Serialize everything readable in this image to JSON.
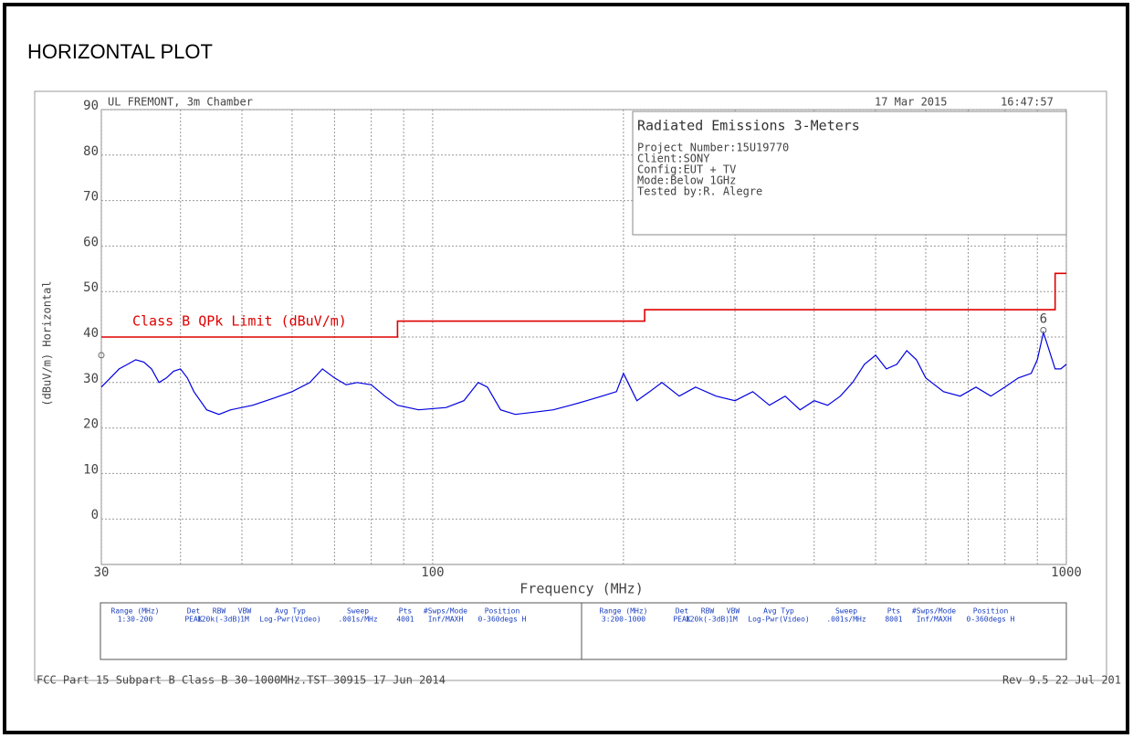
{
  "header": {
    "title": "HORIZONTAL PLOT"
  },
  "chart_data": {
    "type": "line",
    "site": "UL FREMONT, 3m Chamber",
    "date": "17 Mar 2015",
    "time": "16:47:57",
    "info": {
      "title": "Radiated Emissions 3-Meters",
      "lines": [
        "Project Number:15U19770",
        "Client:SONY",
        "Config:EUT + TV",
        "Mode:Below 1GHz",
        "Tested by:R. Alegre"
      ]
    },
    "xlabel": "Frequency (MHz)",
    "ylabel": "(dBuV/m) Horizontal",
    "xscale": "log",
    "xlim": [
      30,
      1000
    ],
    "xticks": [
      30,
      100,
      1000
    ],
    "xminor": [
      40,
      50,
      60,
      70,
      80,
      90,
      200,
      300,
      400,
      500,
      600,
      700,
      800,
      900
    ],
    "ylim": [
      -10,
      90
    ],
    "yticks": [
      0,
      10,
      20,
      30,
      40,
      50,
      60,
      70,
      80,
      90
    ],
    "grid": true,
    "series": [
      {
        "name": "Class B QPk Limit (dBuV/m)",
        "color": "#e00000",
        "step": true,
        "x": [
          30,
          88,
          88,
          216,
          216,
          960,
          960,
          1000
        ],
        "values": [
          40,
          40,
          43.5,
          43.5,
          46,
          46,
          54,
          54
        ]
      },
      {
        "color": "#0000e0",
        "x": [
          30,
          31,
          32,
          33,
          34,
          35,
          36,
          37,
          38,
          39,
          40,
          41,
          42,
          44,
          46,
          48,
          52,
          56,
          60,
          64,
          67,
          70,
          73,
          76,
          80,
          84,
          88,
          95,
          105,
          112,
          118,
          122,
          128,
          135,
          145,
          155,
          165,
          175,
          185,
          195,
          200,
          210,
          220,
          230,
          245,
          260,
          280,
          300,
          320,
          340,
          360,
          380,
          400,
          420,
          440,
          460,
          480,
          500,
          520,
          540,
          560,
          580,
          600,
          640,
          680,
          720,
          760,
          800,
          840,
          880,
          900,
          920,
          940,
          960,
          980,
          1000
        ],
        "values": [
          29,
          31,
          33,
          34,
          35,
          34.5,
          33,
          30,
          31,
          32.5,
          33,
          31,
          28,
          24,
          23,
          24,
          25,
          26.5,
          28,
          30,
          33,
          31,
          29.5,
          30,
          29.5,
          27,
          25,
          24,
          24.5,
          26,
          30,
          29,
          24,
          23,
          23.5,
          24,
          25,
          26,
          27,
          28,
          32,
          26,
          28,
          30,
          27,
          29,
          27,
          26,
          28,
          25,
          27,
          24,
          26,
          25,
          27,
          30,
          34,
          36,
          33,
          34,
          37,
          35,
          31,
          28,
          27,
          29,
          27,
          29,
          31,
          32,
          35,
          41,
          37,
          33,
          33,
          34
        ]
      }
    ],
    "markers": [
      {
        "label": "6",
        "x": 920,
        "y": 41.5
      },
      {
        "x": 30,
        "y": 36
      }
    ]
  },
  "settings_table": {
    "headers": [
      "Range (MHz)",
      "Det",
      "RBW",
      "VBW",
      "Avg Typ",
      "Sweep",
      "Pts",
      "#Swps/Mode",
      "Position"
    ],
    "rows": [
      [
        "1:30-200",
        "PEAK",
        "120k(-3dB)",
        "1M",
        "Log-Pwr(Video)",
        ".001s/MHz",
        "4001",
        "Inf/MAXH",
        "0-360degs H"
      ],
      [
        "3:200-1000",
        "PEAK",
        "120k(-3dB)",
        "1M",
        "Log-Pwr(Video)",
        ".001s/MHz",
        "8001",
        "Inf/MAXH",
        "0-360degs H"
      ]
    ]
  },
  "footer": {
    "left": "FCC Part 15 Subpart B Class B 30-1000MHz.TST 30915 17 Jun 2014",
    "right": "Rev 9.5 22 Jul 201"
  }
}
